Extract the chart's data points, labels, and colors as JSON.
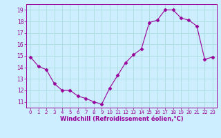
{
  "x": [
    0,
    1,
    2,
    3,
    4,
    5,
    6,
    7,
    8,
    9,
    10,
    11,
    12,
    13,
    14,
    15,
    16,
    17,
    18,
    19,
    20,
    21,
    22,
    23
  ],
  "y": [
    14.9,
    14.1,
    13.8,
    12.6,
    12.0,
    12.0,
    11.5,
    11.3,
    11.0,
    10.8,
    12.2,
    13.3,
    14.4,
    15.1,
    15.6,
    17.9,
    18.1,
    19.0,
    19.0,
    18.3,
    18.1,
    17.6,
    14.7,
    14.9
  ],
  "line_color": "#990099",
  "marker": "D",
  "marker_size": 2.5,
  "bg_color": "#cceeff",
  "grid_color": "#aadddd",
  "xlabel": "Windchill (Refroidissement éolien,°C)",
  "xlabel_color": "#990099",
  "tick_color": "#990099",
  "ylim": [
    10.5,
    19.5
  ],
  "xlim": [
    -0.5,
    23.5
  ],
  "yticks": [
    11,
    12,
    13,
    14,
    15,
    16,
    17,
    18,
    19
  ],
  "xticks": [
    0,
    1,
    2,
    3,
    4,
    5,
    6,
    7,
    8,
    9,
    10,
    11,
    12,
    13,
    14,
    15,
    16,
    17,
    18,
    19,
    20,
    21,
    22,
    23
  ],
  "tick_fontsize": 5.0,
  "xlabel_fontsize": 6.0
}
